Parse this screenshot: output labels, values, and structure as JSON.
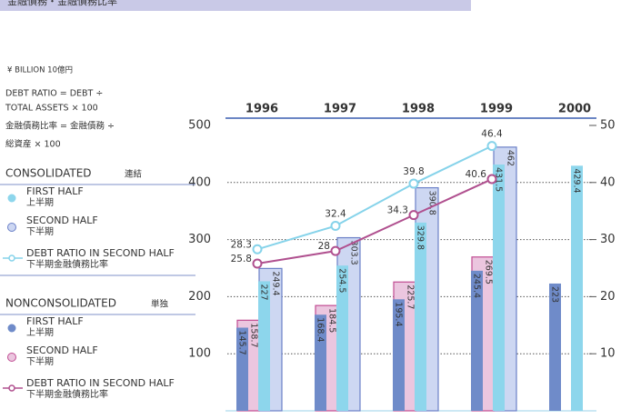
{
  "chart_data": {
    "type": "bar",
    "title": "金融債務・金融債務比率",
    "unit": "¥ BILLION  10億円",
    "formula": [
      "DEBT RATIO = DEBT ÷",
      "TOTAL ASSETS × 100",
      "金融債務比率 = 金融債務 ÷",
      "総資産 × 100"
    ],
    "categories": [
      "1996",
      "1997",
      "1998",
      "1999",
      "2000"
    ],
    "ylim": [
      0,
      500
    ],
    "yticks": [
      100,
      200,
      300,
      400,
      500
    ],
    "y2lim": [
      0,
      50
    ],
    "y2ticks": [
      10,
      20,
      30,
      40,
      50
    ],
    "grid": true,
    "groups": [
      {
        "name": "CONSOLIDATED",
        "name_ja": "連結",
        "series": [
          {
            "name": "FIRST HALF",
            "name_ja": "上半期",
            "type": "bar",
            "color": "#8dd6ec",
            "values": [
              227.0,
              254.5,
              329.8,
              431.5,
              429.4
            ]
          },
          {
            "name": "SECOND HALF",
            "name_ja": "下半期",
            "type": "bar",
            "color": "#cdd7f2",
            "edgecolor": "#6b80c8",
            "values": [
              249.4,
              303.3,
              390.8,
              462.0,
              null
            ]
          },
          {
            "name": "DEBT RATIO IN SECOND HALF",
            "name_ja": "下半期金融債務比率",
            "type": "line",
            "axis": "y2",
            "color": "#86d3ea",
            "values": [
              28.3,
              32.4,
              39.8,
              46.4,
              null
            ]
          }
        ]
      },
      {
        "name": "NONCONSOLIDATED",
        "name_ja": "単独",
        "series": [
          {
            "name": "FIRST HALF",
            "name_ja": "上半期",
            "type": "bar",
            "color": "#6f8bc9",
            "values": [
              145.7,
              168.4,
              195.4,
              245.4,
              223.0
            ]
          },
          {
            "name": "SECOND HALF",
            "name_ja": "下半期",
            "type": "bar",
            "color": "#ebc6df",
            "edgecolor": "#c04c92",
            "values": [
              158.7,
              184.5,
              225.7,
              269.5,
              null
            ]
          },
          {
            "name": "DEBT RATIO IN SECOND HALF",
            "name_ja": "下半期金融債務比率",
            "type": "line",
            "axis": "y2",
            "color": "#b0508f",
            "values": [
              25.8,
              28.0,
              34.3,
              40.6,
              null
            ]
          }
        ]
      }
    ]
  }
}
